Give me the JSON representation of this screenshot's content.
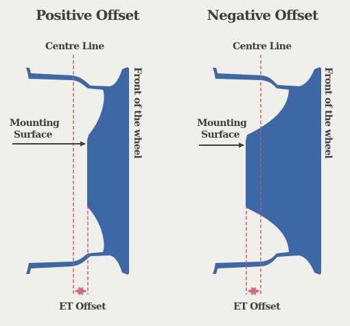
{
  "colors": {
    "background": "#f1efea",
    "wheel": "#3c68a6",
    "centre_line": "#c45a65",
    "et_arrow": "#cf6f76",
    "pointer_arrow": "#3e3e3e",
    "text": "#3e3e3e"
  },
  "left": {
    "title": "Positive Offset",
    "centre_line_label": "Centre Line",
    "front_label": "Front of the wheel",
    "mounting_label_line1": "Mounting",
    "mounting_label_line2": "Surface",
    "et_label": "ET Offset"
  },
  "right": {
    "title": "Negative Offset",
    "centre_line_label": "Centre Line",
    "front_label": "Front of the wheel",
    "mounting_label_line1": "Mounting",
    "mounting_label_line2": "Surface",
    "et_label": "ET Offset"
  }
}
